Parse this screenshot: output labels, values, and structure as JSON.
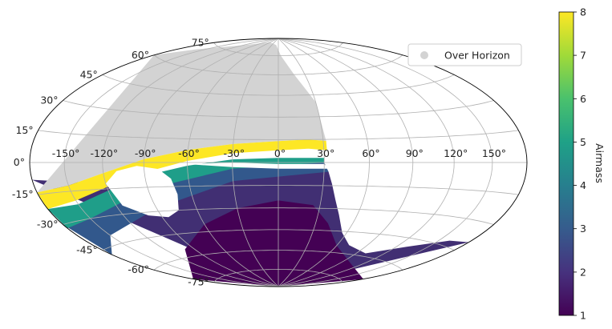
{
  "chart_data": {
    "type": "scatter",
    "projection": "aitoff-like all-sky (hammer)",
    "grid": true,
    "meridian_labels": [
      "-150°",
      "-120°",
      "-90°",
      "-60°",
      "-30°",
      "0°",
      "30°",
      "60°",
      "90°",
      "120°",
      "150°"
    ],
    "meridian_values": [
      -150,
      -120,
      -90,
      -60,
      -30,
      0,
      30,
      60,
      90,
      120,
      150
    ],
    "parallel_labels": [
      "75°",
      "60°",
      "45°",
      "30°",
      "15°",
      "0°",
      "-15°",
      "-30°",
      "-45°",
      "-60°",
      "-75°"
    ],
    "parallel_values": [
      75,
      60,
      45,
      30,
      15,
      0,
      -15,
      -30,
      -45,
      -60,
      -75
    ],
    "colorbar": {
      "label": "Airmass",
      "range": [
        1,
        8
      ],
      "ticks": [
        "1",
        "2",
        "3",
        "4",
        "5",
        "6",
        "7",
        "8"
      ],
      "colormap": "viridis"
    },
    "legend": {
      "placement": "top-right",
      "entries": [
        {
          "label": "Over Horizon",
          "color": "#d3d3d3"
        }
      ]
    },
    "regions": {
      "over_horizon_color": "#d3d3d3",
      "horizon_band_airmass": 8,
      "south_airmass_min": 1,
      "south_airmass_max": 2.5
    }
  }
}
